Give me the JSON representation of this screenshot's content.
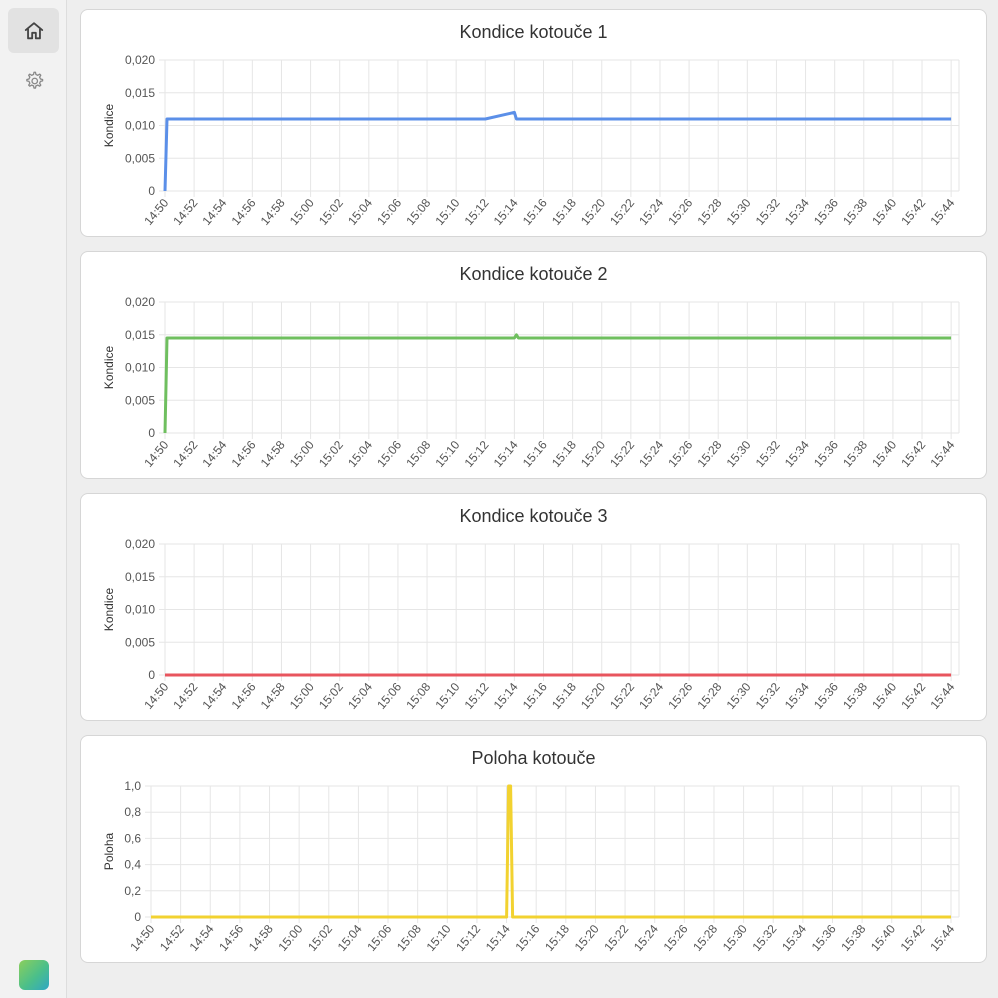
{
  "sidebar": {
    "items": [
      {
        "icon": "home-icon",
        "active": true
      },
      {
        "icon": "gear-icon",
        "active": false
      }
    ]
  },
  "chart_data": [
    {
      "type": "line",
      "title": "Kondice kotouče 1",
      "ylabel": "Kondice",
      "xlabel": "",
      "ylim": [
        0,
        0.02
      ],
      "yticks": [
        "0,020",
        "0,015",
        "0,010",
        "0,005",
        "0"
      ],
      "categories": [
        "14:50",
        "14:52",
        "14:54",
        "14:56",
        "14:58",
        "15:00",
        "15:02",
        "15:04",
        "15:06",
        "15:08",
        "15:10",
        "15:12",
        "15:14",
        "15:16",
        "15:18",
        "15:20",
        "15:22",
        "15:24",
        "15:26",
        "15:28",
        "15:30",
        "15:32",
        "15:34",
        "15:36",
        "15:38",
        "15:40",
        "15:42",
        "15:44"
      ],
      "color": "#5b8fe8",
      "grid": true,
      "series": [
        {
          "x": [
            "14:50",
            "14:50",
            "14:52",
            "14:54",
            "14:56",
            "14:58",
            "15:00",
            "15:02",
            "15:04",
            "15:06",
            "15:08",
            "15:10",
            "15:12",
            "15:14",
            "15:14",
            "15:16",
            "15:18",
            "15:20",
            "15:22",
            "15:24",
            "15:26",
            "15:28",
            "15:30",
            "15:32",
            "15:34",
            "15:36",
            "15:38",
            "15:40",
            "15:42",
            "15:44"
          ],
          "values": [
            0,
            0.011,
            0.011,
            0.011,
            0.011,
            0.011,
            0.011,
            0.011,
            0.011,
            0.011,
            0.011,
            0.011,
            0.011,
            0.012,
            0.011,
            0.011,
            0.011,
            0.011,
            0.011,
            0.011,
            0.011,
            0.011,
            0.011,
            0.011,
            0.011,
            0.011,
            0.011,
            0.011,
            0.011,
            0.011
          ]
        }
      ]
    },
    {
      "type": "line",
      "title": "Kondice kotouče 2",
      "ylabel": "Kondice",
      "xlabel": "",
      "ylim": [
        0,
        0.02
      ],
      "yticks": [
        "0,020",
        "0,015",
        "0,010",
        "0,005",
        "0"
      ],
      "categories": [
        "14:50",
        "14:52",
        "14:54",
        "14:56",
        "14:58",
        "15:00",
        "15:02",
        "15:04",
        "15:06",
        "15:08",
        "15:10",
        "15:12",
        "15:14",
        "15:16",
        "15:18",
        "15:20",
        "15:22",
        "15:24",
        "15:26",
        "15:28",
        "15:30",
        "15:32",
        "15:34",
        "15:36",
        "15:38",
        "15:40",
        "15:42",
        "15:44"
      ],
      "color": "#6fbf5f",
      "grid": true,
      "series": [
        {
          "x": [
            "14:50",
            "14:50",
            "14:52",
            "15:14",
            "15:14",
            "15:14",
            "15:44"
          ],
          "values": [
            0,
            0.0145,
            0.0145,
            0.0145,
            0.015,
            0.0145,
            0.0145
          ]
        }
      ]
    },
    {
      "type": "line",
      "title": "Kondice kotouče 3",
      "ylabel": "Kondice",
      "xlabel": "",
      "ylim": [
        0,
        0.02
      ],
      "yticks": [
        "0,020",
        "0,015",
        "0,010",
        "0,005",
        "0"
      ],
      "categories": [
        "14:50",
        "14:52",
        "14:54",
        "14:56",
        "14:58",
        "15:00",
        "15:02",
        "15:04",
        "15:06",
        "15:08",
        "15:10",
        "15:12",
        "15:14",
        "15:16",
        "15:18",
        "15:20",
        "15:22",
        "15:24",
        "15:26",
        "15:28",
        "15:30",
        "15:32",
        "15:34",
        "15:36",
        "15:38",
        "15:40",
        "15:42",
        "15:44"
      ],
      "color": "#e8555e",
      "grid": true,
      "series": [
        {
          "x": [
            "14:50",
            "15:44"
          ],
          "values": [
            0,
            0
          ]
        }
      ]
    },
    {
      "type": "line",
      "title": "Poloha kotouče",
      "ylabel": "Poloha",
      "xlabel": "",
      "ylim": [
        0,
        1
      ],
      "yticks": [
        "1,0",
        "0,8",
        "0,6",
        "0,4",
        "0,2",
        "0"
      ],
      "categories": [
        "14:50",
        "14:52",
        "14:54",
        "14:56",
        "14:58",
        "15:00",
        "15:02",
        "15:04",
        "15:06",
        "15:08",
        "15:10",
        "15:12",
        "15:14",
        "15:16",
        "15:18",
        "15:20",
        "15:22",
        "15:24",
        "15:26",
        "15:28",
        "15:30",
        "15:32",
        "15:34",
        "15:36",
        "15:38",
        "15:40",
        "15:42",
        "15:44"
      ],
      "color": "#f2d230",
      "grid": true,
      "series": [
        {
          "x": [
            "14:50",
            "15:14",
            "15:14",
            "15:14",
            "15:14",
            "15:44"
          ],
          "values": [
            0,
            0,
            1,
            1,
            0,
            0
          ]
        }
      ]
    }
  ]
}
